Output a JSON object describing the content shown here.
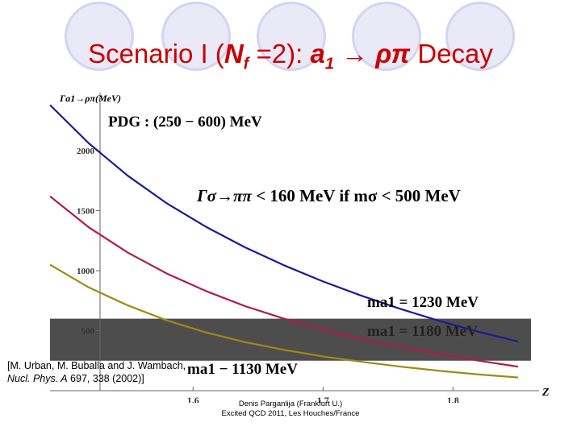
{
  "slide": {
    "title_prefix": "Scenario I (",
    "title_nf": "N",
    "title_nf_sub": "f",
    "title_mid": " =2): ",
    "title_a": "a",
    "title_a_sub": "1",
    "title_arrow": " → ",
    "title_rho_pi": "ρπ",
    "title_suffix": " Decay",
    "reference_line1": "[M. Urban, M. Buballa and J. Wambach, ",
    "reference_journal": "Nucl. Phys. A",
    "reference_line2": " 697, 338 (2002)]",
    "footer_line1": "Denis Parganlija (Frankfurt U.)",
    "footer_line2": "Excited QCD 2011, Les Houches/France"
  },
  "colors": {
    "title": "#cc0000",
    "band": "#4d4d4d",
    "curve_1230": "#1a1a9a",
    "curve_1180": "#b01850",
    "curve_1130": "#a08a10"
  },
  "chart_data": {
    "type": "line",
    "ylabel": "Γa1→ρπ(MeV)",
    "xlabel": "Z",
    "x_ticks": [
      "1.6",
      "1.7",
      "1.8"
    ],
    "y_ticks": [
      "500",
      "1000",
      "1500",
      "2000"
    ],
    "xlim": [
      1.49,
      1.86
    ],
    "ylim": [
      0,
      2450
    ],
    "annotations": {
      "pdg": "PDG : (250 − 600) MeV",
      "sigma_gamma": "Γσ→ππ",
      "sigma_rest": " < 160 MeV if mσ < 500 MeV",
      "label_1230": "ma1 = 1230 MeV",
      "label_1180": "ma1 = 1180 MeV",
      "label_1130": "ma1 − 1130 MeV"
    },
    "pdg_band": [
      250,
      600
    ],
    "series": [
      {
        "name": "ma1 = 1230 MeV",
        "x": [
          1.49,
          1.52,
          1.55,
          1.58,
          1.61,
          1.64,
          1.67,
          1.7,
          1.73,
          1.76,
          1.79,
          1.82,
          1.85
        ],
        "values": [
          2380,
          2060,
          1790,
          1560,
          1365,
          1195,
          1045,
          910,
          790,
          680,
          580,
          490,
          410
        ]
      },
      {
        "name": "ma1 = 1180 MeV",
        "x": [
          1.49,
          1.52,
          1.55,
          1.58,
          1.61,
          1.64,
          1.67,
          1.7,
          1.73,
          1.76,
          1.79,
          1.82,
          1.85
        ],
        "values": [
          1620,
          1360,
          1150,
          975,
          830,
          705,
          600,
          510,
          430,
          365,
          305,
          250,
          200
        ]
      },
      {
        "name": "ma1 = 1130 MeV",
        "x": [
          1.49,
          1.52,
          1.55,
          1.58,
          1.61,
          1.64,
          1.67,
          1.7,
          1.73,
          1.76,
          1.79,
          1.82,
          1.85
        ],
        "values": [
          1050,
          860,
          710,
          585,
          485,
          405,
          340,
          285,
          240,
          200,
          165,
          135,
          110
        ]
      }
    ]
  }
}
